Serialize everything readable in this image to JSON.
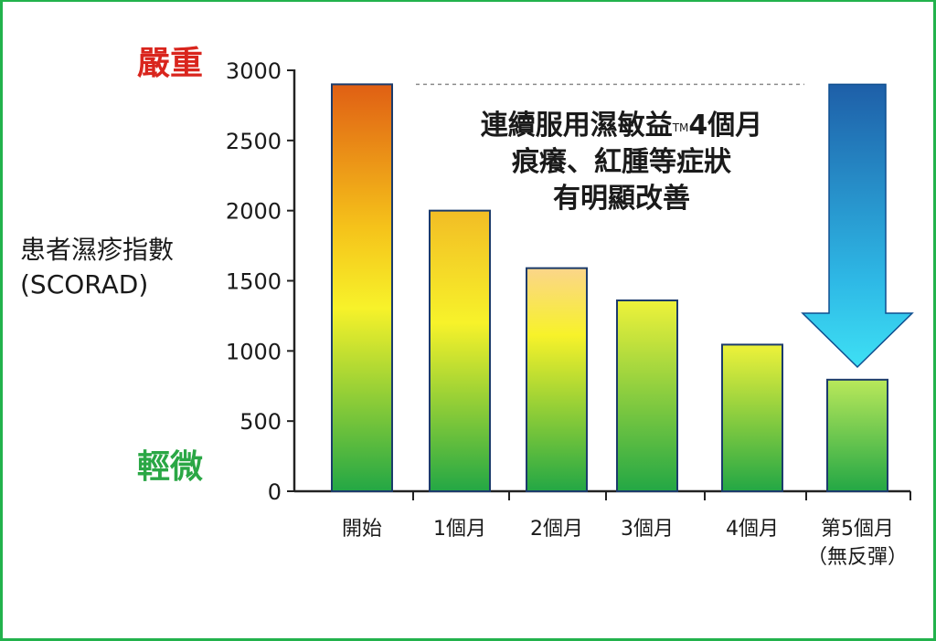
{
  "labels": {
    "severe": "嚴重",
    "mild": "輕微",
    "ylabel_line1": "患者濕疹指數",
    "ylabel_line2": "(SCORAD)"
  },
  "callout": {
    "line1_main": "連續服用濕敏益",
    "line1_tm": "TM",
    "line1_tail": "4個月",
    "line2": "痕癢、紅腫等症狀",
    "line3": "有明顯改善"
  },
  "colors": {
    "severe": "#d9251d",
    "mild": "#2aa745",
    "frame": "#22b24c",
    "bar_top_hot": "#e8621a",
    "bar_mid": "#f7f22a",
    "bar_bottom": "#23a745",
    "arrow_top": "#1e5fa8",
    "arrow_bottom": "#35d3f0"
  },
  "chart_data": {
    "type": "bar",
    "categories": [
      "開始",
      "1個月",
      "2個月",
      "3個月",
      "4個月",
      "第5個月\n（無反彈）"
    ],
    "category_lines": [
      [
        "開始"
      ],
      [
        "1個月"
      ],
      [
        "2個月"
      ],
      [
        "3個月"
      ],
      [
        "4個月"
      ],
      [
        "第5個月",
        "（無反彈）"
      ]
    ],
    "values": [
      2900,
      2000,
      1590,
      1360,
      1045,
      795
    ],
    "ylim": [
      0,
      3000
    ],
    "yticks": [
      0,
      500,
      1000,
      1500,
      2000,
      2500,
      3000
    ],
    "title": "",
    "xlabel": "",
    "ylabel": "患者濕疹指數 (SCORAD)",
    "reference_line_value": 2900,
    "arrow": "down, from 開始 level to 第5個月",
    "grid": false
  }
}
